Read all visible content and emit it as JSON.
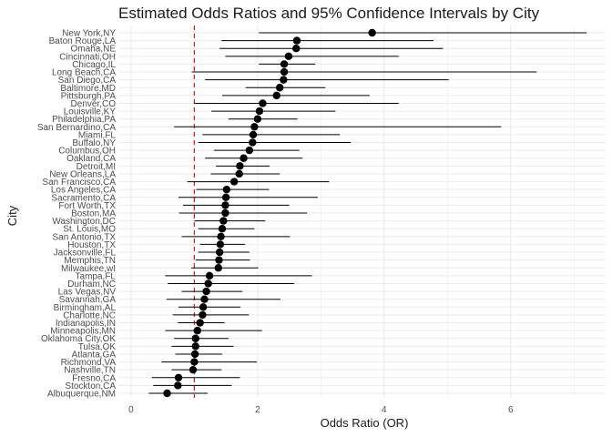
{
  "chart_data": {
    "type": "scatter",
    "title": "Estimated Odds Ratios and 95% Confidence Intervals by City",
    "xlabel": "Odds Ratio (OR)",
    "ylabel": "City",
    "xlim": [
      -0.2,
      7.5
    ],
    "x_ticks": [
      0,
      2,
      4,
      6
    ],
    "grid": true,
    "reference_line": {
      "x": 1,
      "color": "#e41a1c",
      "style": "dashed"
    },
    "point_color": "#000000",
    "cities": [
      "New York,NY",
      "Baton Rouge,LA",
      "Omaha,NE",
      "Cincinnati,OH",
      "Chicago,IL",
      "Long Beach,CA",
      "San Diego,CA",
      "Baltimore,MD",
      "Pittsburgh,PA",
      "Denver,CO",
      "Louisville,KY",
      "Philadelphia,PA",
      "San Bernardino,CA",
      "Miami,FL",
      "Buffalo,NY",
      "Columbus,OH",
      "Oakland,CA",
      "Detroit,MI",
      "New Orleans,LA",
      "San Francisco,CA",
      "Los Angeles,CA",
      "Sacramento,CA",
      "Fort Worth,TX",
      "Boston,MA",
      "Washington,DC",
      "St. Louis,MO",
      "San Antonio,TX",
      "Houston,TX",
      "Jacksonville,FL",
      "Memphis,TN",
      "Milwaukee,wI",
      "Tampa,FL",
      "Durham,NC",
      "Las Vegas,NV",
      "Savannah,GA",
      "Birmingham,AL",
      "Charlotte,NC",
      "Indianapolis,IN",
      "Minneapolis,MN",
      "Oklahoma City,OK",
      "Tulsa,OK",
      "Atlanta,GA",
      "Richmond,VA",
      "Nashville,TN",
      "Fresno,CA",
      "Stockton,CA",
      "Albuquerque,NM"
    ],
    "or": [
      3.81,
      2.62,
      2.61,
      2.49,
      2.42,
      2.42,
      2.41,
      2.35,
      2.3,
      2.08,
      2.03,
      2.0,
      1.95,
      1.93,
      1.92,
      1.87,
      1.78,
      1.72,
      1.71,
      1.63,
      1.51,
      1.5,
      1.49,
      1.49,
      1.46,
      1.44,
      1.42,
      1.41,
      1.4,
      1.39,
      1.38,
      1.24,
      1.22,
      1.19,
      1.16,
      1.14,
      1.13,
      1.09,
      1.05,
      1.02,
      1.02,
      1.01,
      1.0,
      0.98,
      0.75,
      0.74,
      0.57
    ],
    "lower": [
      2.02,
      1.43,
      1.4,
      1.49,
      2.02,
      0.96,
      1.17,
      1.81,
      1.44,
      1.0,
      1.27,
      1.54,
      0.68,
      1.13,
      1.06,
      1.31,
      1.17,
      1.34,
      1.26,
      0.89,
      1.03,
      0.75,
      0.82,
      0.76,
      1.0,
      1.06,
      0.8,
      1.09,
      1.06,
      1.02,
      0.95,
      0.54,
      0.58,
      0.8,
      0.56,
      0.75,
      0.66,
      0.74,
      0.54,
      0.68,
      0.64,
      0.7,
      0.48,
      0.64,
      0.33,
      0.35,
      0.28
    ],
    "upper": [
      7.2,
      4.78,
      4.93,
      4.23,
      2.91,
      6.41,
      5.02,
      3.07,
      3.77,
      4.23,
      3.23,
      2.63,
      5.85,
      3.3,
      3.47,
      2.66,
      2.71,
      2.19,
      2.35,
      3.13,
      2.18,
      2.95,
      2.5,
      2.78,
      2.12,
      1.95,
      2.51,
      1.8,
      1.87,
      1.88,
      2.01,
      2.86,
      2.58,
      1.76,
      2.36,
      1.73,
      1.86,
      1.48,
      2.07,
      1.54,
      1.62,
      1.44,
      1.99,
      1.43,
      1.72,
      1.59,
      1.21
    ]
  }
}
